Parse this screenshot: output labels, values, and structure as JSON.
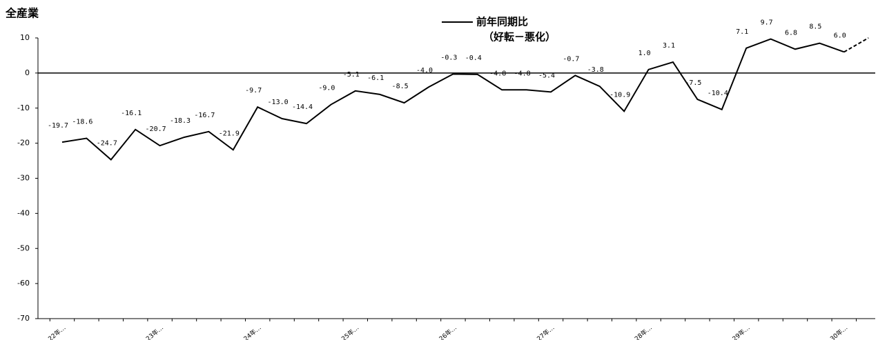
{
  "chart_data": {
    "type": "line",
    "title": "全産業",
    "categories": [
      "22年…",
      null,
      null,
      null,
      "23年…",
      null,
      null,
      null,
      "24年…",
      null,
      null,
      null,
      "25年…",
      null,
      null,
      null,
      "26年…",
      null,
      null,
      null,
      "27年…",
      null,
      null,
      null,
      "28年…",
      null,
      null,
      null,
      "29年…",
      null,
      null,
      null,
      "30年…",
      null
    ],
    "series": [
      {
        "name": "前年同期比",
        "legend_note": "（好転－悪化）",
        "color": "#000000",
        "values": [
          -19.7,
          -18.6,
          -24.7,
          -16.1,
          -20.7,
          -18.3,
          -16.7,
          -21.9,
          -9.7,
          -13.0,
          -14.4,
          -9.0,
          -5.1,
          -6.1,
          -8.5,
          -4.0,
          -0.3,
          -0.4,
          -4.8,
          -4.8,
          -5.4,
          -0.7,
          -3.8,
          -10.9,
          1.0,
          3.1,
          -7.5,
          -10.4,
          7.1,
          9.7,
          6.8,
          8.5,
          6.0,
          10
        ],
        "value_labels": [
          "-19.7",
          "-18.6",
          "-24.7",
          "-16.1",
          "-20.7",
          "-18.3",
          "-16.7",
          "-21.9",
          "-9.7",
          "-13.0",
          "-14.4",
          "-9.0",
          "-5.1",
          "-6.1",
          "-8.5",
          "-4.0",
          "-0.3",
          "-0.4",
          "-4.8",
          "-4.8",
          "-5.4",
          "-0.7",
          "-3.8",
          "-10.9",
          "1.0",
          "3.1",
          "-7.5",
          "-10.4",
          "7.1",
          "9.7",
          "6.8",
          "8.5",
          "6.0",
          null
        ],
        "dashed_last": true
      }
    ],
    "ylim": [
      -70,
      10
    ],
    "yticks": [
      -70,
      -60,
      -50,
      -40,
      -30,
      -20,
      -10,
      0,
      10
    ]
  }
}
